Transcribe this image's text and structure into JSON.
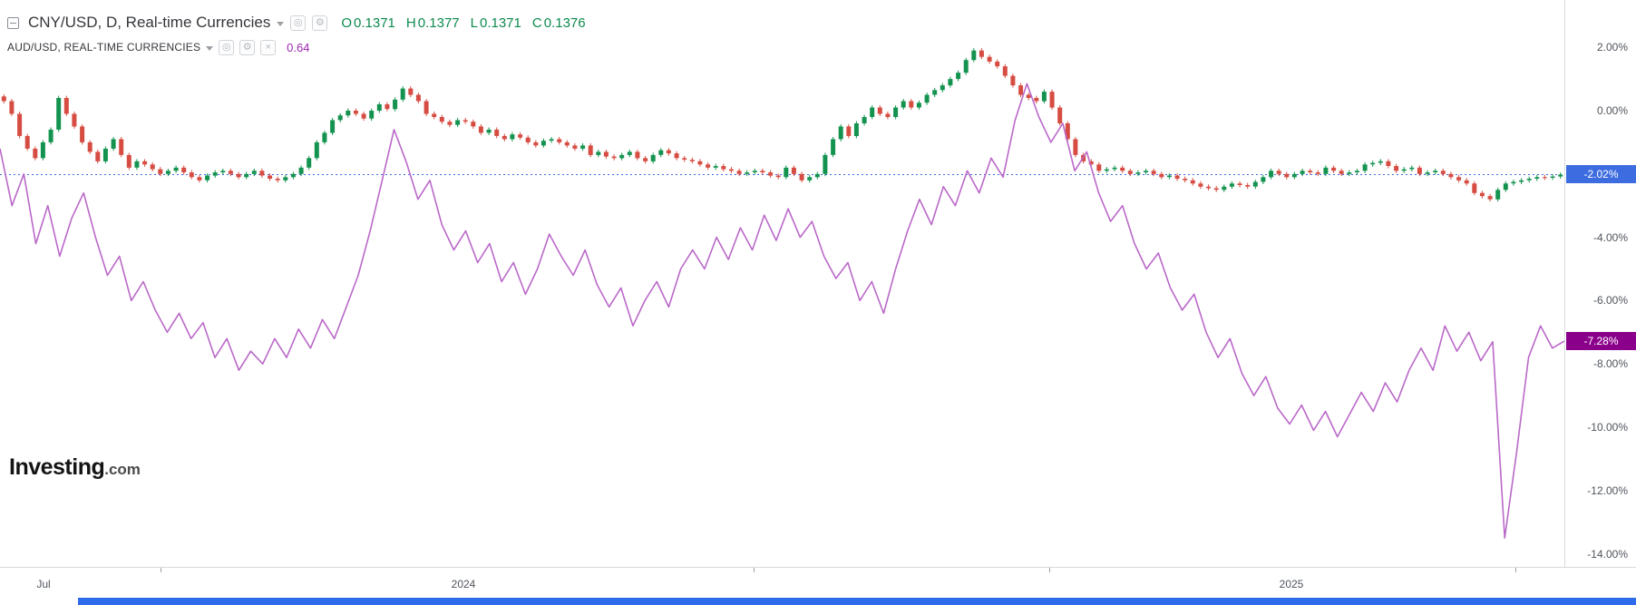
{
  "colors": {
    "candle_up": "#149350",
    "candle_down": "#d64c42",
    "ohlc_text": "#0d8a4d",
    "overlay_value_text": "#9c27b0",
    "aud_line": "#ba68c8",
    "price_line": "#3d6be0",
    "bottom_bar": "#2e6bea"
  },
  "legend": {
    "main": {
      "title": "CNY/USD, D, Real-time Currencies",
      "ohlc": [
        {
          "label": "O",
          "value": "0.1371"
        },
        {
          "label": "H",
          "value": "0.1377"
        },
        {
          "label": "L",
          "value": "0.1371"
        },
        {
          "label": "C",
          "value": "0.1376"
        }
      ]
    },
    "overlay": {
      "title": "AUD/USD, REAL-TIME CURRENCIES",
      "value": "0.64"
    }
  },
  "price_axis": {
    "labels": [
      "2.00%",
      "0.00%",
      "-2.00%",
      "-4.00%",
      "-6.00%",
      "-8.00%",
      "-10.00%",
      "-12.00%",
      "-14.00%"
    ],
    "badges": [
      {
        "name": "cny-last-price-badge",
        "text": "-2.02%",
        "color": "#3d6be0"
      },
      {
        "name": "aud-last-price-badge",
        "text": "-7.28%",
        "color": "#8b008b"
      }
    ]
  },
  "time_axis": {
    "labels": [
      {
        "text": "Jul",
        "x": 48
      },
      {
        "text": "2024",
        "x": 511
      },
      {
        "text": "2025",
        "x": 1424
      }
    ],
    "ticks": [
      177,
      831,
      1157,
      1671
    ]
  },
  "logo": {
    "main": "Investing",
    "suffix": ".com"
  },
  "chart_data": [
    {
      "type": "candlestick",
      "name": "CNY/USD",
      "interval": "D",
      "unit": "percent_change",
      "ylim": [
        -14.4,
        3.5
      ],
      "y_tick_labels": [
        "2.00%",
        "0.00%",
        "-2.00%",
        "-4.00%",
        "-6.00%",
        "-8.00%",
        "-10.00%",
        "-12.00%",
        "-14.00%"
      ],
      "x_tick_labels": [
        "Jul",
        "2024",
        "2025"
      ],
      "last_close": -2.02,
      "closes": [
        0.3,
        -0.1,
        -0.8,
        -1.2,
        -1.5,
        -1.0,
        -0.6,
        0.4,
        -0.1,
        -0.5,
        -1.0,
        -1.3,
        -1.6,
        -1.2,
        -0.9,
        -1.4,
        -1.8,
        -1.6,
        -1.7,
        -1.85,
        -2.0,
        -1.9,
        -1.8,
        -1.95,
        -2.1,
        -2.2,
        -2.05,
        -1.95,
        -1.9,
        -2.0,
        -2.1,
        -2.0,
        -1.9,
        -2.05,
        -2.15,
        -2.2,
        -2.1,
        -2.0,
        -1.8,
        -1.5,
        -1.0,
        -0.7,
        -0.3,
        -0.15,
        0.0,
        -0.1,
        -0.25,
        0.0,
        0.2,
        0.05,
        0.35,
        0.7,
        0.5,
        0.3,
        -0.1,
        -0.2,
        -0.35,
        -0.45,
        -0.3,
        -0.35,
        -0.5,
        -0.7,
        -0.6,
        -0.8,
        -0.9,
        -0.75,
        -0.85,
        -1.0,
        -1.1,
        -0.95,
        -0.9,
        -1.0,
        -1.1,
        -1.2,
        -1.1,
        -1.4,
        -1.3,
        -1.45,
        -1.5,
        -1.4,
        -1.3,
        -1.5,
        -1.6,
        -1.4,
        -1.25,
        -1.35,
        -1.5,
        -1.55,
        -1.6,
        -1.7,
        -1.8,
        -1.75,
        -1.85,
        -1.9,
        -2.0,
        -1.95,
        -1.9,
        -1.95,
        -2.05,
        -2.1,
        -1.8,
        -2.0,
        -2.2,
        -2.1,
        -2.0,
        -1.4,
        -0.9,
        -0.5,
        -0.8,
        -0.4,
        -0.2,
        0.1,
        -0.1,
        -0.2,
        0.1,
        0.3,
        0.1,
        0.25,
        0.5,
        0.65,
        0.8,
        1.0,
        1.2,
        1.6,
        1.9,
        1.7,
        1.55,
        1.4,
        1.1,
        0.8,
        0.5,
        0.4,
        0.3,
        0.6,
        0.1,
        -0.4,
        -0.9,
        -1.4,
        -1.6,
        -1.7,
        -1.9,
        -1.85,
        -1.8,
        -1.9,
        -2.0,
        -1.95,
        -1.9,
        -2.0,
        -2.1,
        -2.05,
        -2.15,
        -2.2,
        -2.3,
        -2.4,
        -2.45,
        -2.5,
        -2.4,
        -2.3,
        -2.35,
        -2.4,
        -2.25,
        -2.1,
        -1.9,
        -2.0,
        -2.1,
        -2.0,
        -1.9,
        -1.95,
        -2.0,
        -1.8,
        -1.9,
        -2.0,
        -1.95,
        -1.9,
        -1.7,
        -1.65,
        -1.6,
        -1.75,
        -1.9,
        -1.85,
        -1.8,
        -2.0,
        -1.95,
        -1.9,
        -2.0,
        -2.1,
        -2.2,
        -2.3,
        -2.6,
        -2.7,
        -2.8,
        -2.5,
        -2.3,
        -2.25,
        -2.2,
        -2.15,
        -2.1,
        -2.12,
        -2.08,
        -2.02
      ]
    },
    {
      "type": "line",
      "name": "AUD/USD",
      "unit": "percent_change",
      "last_value": -7.28,
      "values": [
        -1.2,
        -3.0,
        -2.0,
        -4.2,
        -3.0,
        -4.6,
        -3.4,
        -2.6,
        -4.0,
        -5.2,
        -4.6,
        -6.0,
        -5.4,
        -6.3,
        -7.0,
        -6.4,
        -7.2,
        -6.7,
        -7.8,
        -7.2,
        -8.2,
        -7.6,
        -8.0,
        -7.2,
        -7.8,
        -6.9,
        -7.5,
        -6.6,
        -7.2,
        -6.2,
        -5.2,
        -3.8,
        -2.2,
        -0.6,
        -1.6,
        -2.8,
        -2.2,
        -3.6,
        -4.4,
        -3.8,
        -4.8,
        -4.2,
        -5.4,
        -4.8,
        -5.8,
        -5.0,
        -3.9,
        -4.6,
        -5.2,
        -4.4,
        -5.5,
        -6.2,
        -5.6,
        -6.8,
        -6.0,
        -5.4,
        -6.2,
        -5.0,
        -4.4,
        -5.0,
        -4.0,
        -4.7,
        -3.7,
        -4.4,
        -3.3,
        -4.1,
        -3.1,
        -4.0,
        -3.5,
        -4.6,
        -5.3,
        -4.8,
        -6.0,
        -5.4,
        -6.4,
        -5.0,
        -3.8,
        -2.8,
        -3.6,
        -2.4,
        -3.0,
        -1.9,
        -2.6,
        -1.5,
        -2.1,
        -0.3,
        0.85,
        -0.2,
        -1.0,
        -0.4,
        -1.9,
        -1.3,
        -2.6,
        -3.5,
        -3.0,
        -4.2,
        -5.0,
        -4.5,
        -5.6,
        -6.3,
        -5.8,
        -7.0,
        -7.8,
        -7.2,
        -8.3,
        -9.0,
        -8.4,
        -9.4,
        -9.9,
        -9.3,
        -10.1,
        -9.5,
        -10.3,
        -9.6,
        -8.9,
        -9.5,
        -8.6,
        -9.2,
        -8.2,
        -7.5,
        -8.2,
        -6.8,
        -7.6,
        -7.0,
        -7.9,
        -7.3,
        -13.5,
        -10.8,
        -7.8,
        -6.8,
        -7.5,
        -7.28
      ]
    }
  ]
}
